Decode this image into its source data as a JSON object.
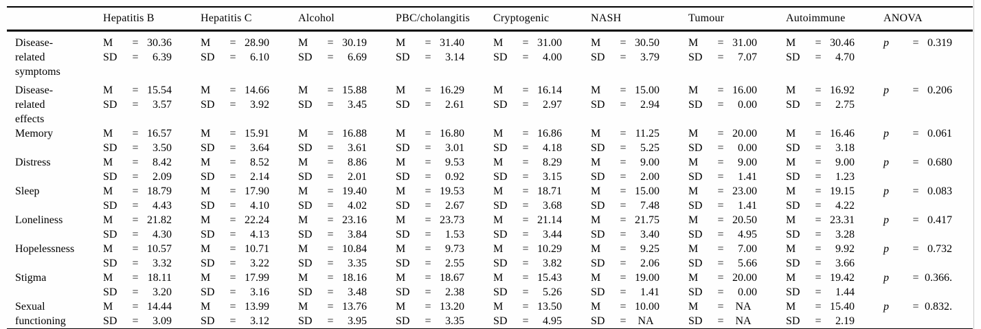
{
  "table": {
    "columns": [
      "Hepatitis B",
      "Hepatitis C",
      "Alcohol",
      "PBC/cholangitis",
      "Cryptogenic",
      "NASH",
      "Tumour",
      "Autoimmune"
    ],
    "anova_column": "ANOVA",
    "stat": {
      "mean_label": "M",
      "sd_label": "SD",
      "p_label": "p",
      "equals": "="
    },
    "rows": [
      {
        "label": "Disease-\nrelated\nsymptoms",
        "M": [
          "30.36",
          "28.90",
          "30.19",
          "31.40",
          "31.00",
          "30.50",
          "31.00",
          "30.46"
        ],
        "SD": [
          "6.39",
          "6.10",
          "6.69",
          "3.14",
          "4.00",
          "3.79",
          "7.07",
          "4.70"
        ],
        "p": "0.319"
      },
      {
        "label": "Disease-\nrelated\neffects",
        "M": [
          "15.54",
          "14.66",
          "15.88",
          "16.29",
          "16.14",
          "15.00",
          "16.00",
          "16.92"
        ],
        "SD": [
          "3.57",
          "3.92",
          "3.45",
          "2.61",
          "2.97",
          "2.94",
          "0.00",
          "2.75"
        ],
        "p": "0.206"
      },
      {
        "label": "Memory",
        "M": [
          "16.57",
          "15.91",
          "16.88",
          "16.80",
          "16.86",
          "11.25",
          "20.00",
          "16.46"
        ],
        "SD": [
          "3.50",
          "3.64",
          "3.61",
          "3.01",
          "4.18",
          "5.25",
          "0.00",
          "3.18"
        ],
        "p": "0.061"
      },
      {
        "label": "Distress",
        "M": [
          "8.42",
          "8.52",
          "8.86",
          "9.53",
          "8.29",
          "9.00",
          "9.00",
          "9.00"
        ],
        "SD": [
          "2.09",
          "2.14",
          "2.01",
          "0.92",
          "3.15",
          "2.00",
          "1.41",
          "1.23"
        ],
        "p": "0.680"
      },
      {
        "label": "Sleep",
        "M": [
          "18.79",
          "17.90",
          "19.40",
          "19.53",
          "18.71",
          "15.00",
          "23.00",
          "19.15"
        ],
        "SD": [
          "4.43",
          "4.10",
          "4.02",
          "2.67",
          "3.68",
          "7.48",
          "1.41",
          "4.22"
        ],
        "p": "0.083"
      },
      {
        "label": "Loneliness",
        "M": [
          "21.82",
          "22.24",
          "23.16",
          "23.73",
          "21.14",
          "21.75",
          "20.50",
          "23.31"
        ],
        "SD": [
          "4.30",
          "4.13",
          "3.84",
          "1.53",
          "3.44",
          "3.40",
          "4.95",
          "3.28"
        ],
        "p": "0.417"
      },
      {
        "label": "Hopelessness",
        "M": [
          "10.57",
          "10.71",
          "10.84",
          "9.73",
          "10.29",
          "9.25",
          "7.00",
          "9.92"
        ],
        "SD": [
          "3.32",
          "3.22",
          "3.35",
          "2.55",
          "3.82",
          "2.06",
          "5.66",
          "3.66"
        ],
        "p": "0.732"
      },
      {
        "label": "Stigma",
        "M": [
          "18.11",
          "17.99",
          "18.16",
          "18.67",
          "15.43",
          "19.00",
          "20.00",
          "19.42"
        ],
        "SD": [
          "3.20",
          "3.16",
          "3.48",
          "2.38",
          "5.26",
          "1.41",
          "0.00",
          "1.44"
        ],
        "p": "0.366."
      },
      {
        "label": "Sexual\nfunctioning",
        "M": [
          "14.44",
          "13.99",
          "13.76",
          "13.20",
          "13.50",
          "10.00",
          "NA",
          "15.40"
        ],
        "SD": [
          "3.09",
          "3.12",
          "3.95",
          "3.35",
          "4.95",
          "NA",
          "NA",
          "2.19"
        ],
        "p": "0.832."
      }
    ]
  }
}
